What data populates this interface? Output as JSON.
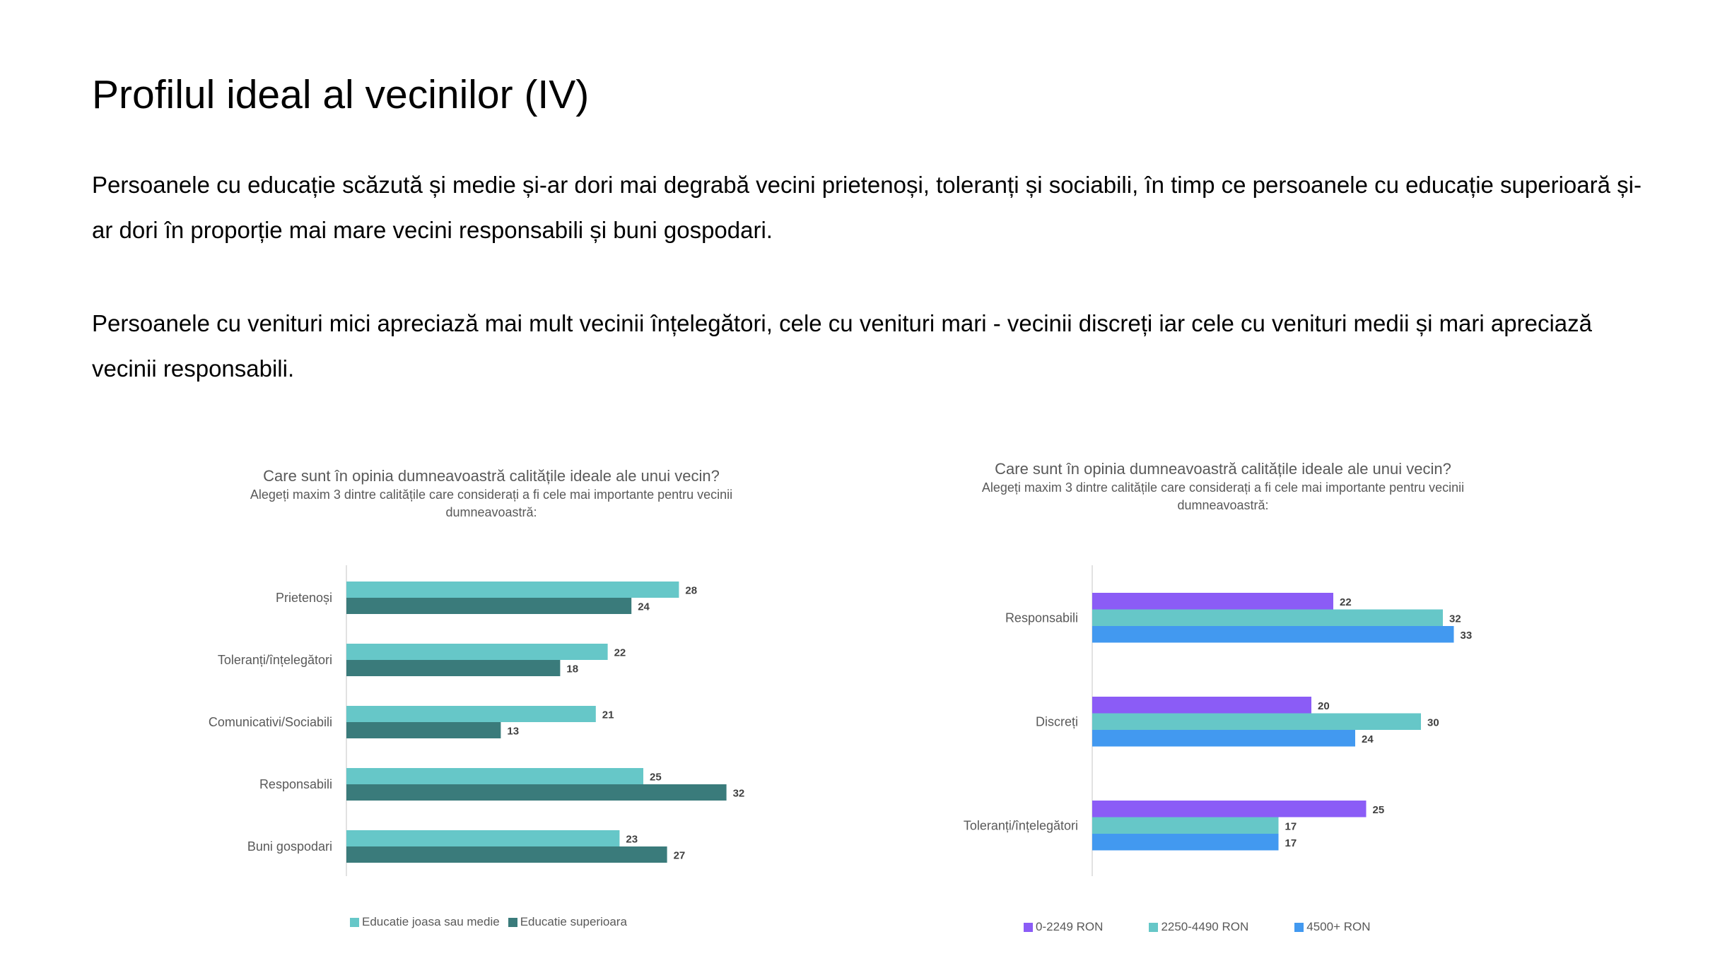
{
  "slide": {
    "title": "Profilul ideal al vecinilor (IV)",
    "paragraph1": "Persoanele cu educație scăzută și medie și-ar dori mai degrabă vecini prietenoși, toleranți și sociabili, în timp ce persoanele cu educație superioară și-ar dori în proporție mai mare  vecini responsabili și buni gospodari.",
    "paragraph2": "Persoanele cu venituri mici apreciază mai mult vecinii înțelegători, cele cu venituri mari - vecinii discreți iar cele cu venituri medii și mari apreciază vecinii responsabili."
  },
  "chart_data": [
    {
      "type": "bar",
      "orientation": "horizontal",
      "title": "Care sunt în opinia dumneavoastră calitățile ideale ale unui vecin?",
      "subtitle": "Alegeți maxim 3 dintre calitățile care considerați a fi cele mai importante pentru vecinii dumneavoastră:",
      "categories": [
        "Prietenoși",
        "Toleranți/înțelegători",
        "Comunicativi/Sociabili",
        "Responsabili",
        "Buni gospodari"
      ],
      "series": [
        {
          "name": "Educatie joasa sau medie",
          "color": "#66c7c8",
          "values": [
            28,
            22,
            21,
            25,
            23
          ]
        },
        {
          "name": "Educatie superioara",
          "color": "#3a7b7b",
          "values": [
            24,
            18,
            13,
            32,
            27
          ]
        }
      ],
      "xlim": [
        0,
        35
      ],
      "grid": false,
      "legend": "bottom"
    },
    {
      "type": "bar",
      "orientation": "horizontal",
      "title": "Care sunt în opinia dumneavoastră calitățile ideale ale unui vecin?",
      "subtitle": "Alegeți maxim 3 dintre calitățile care considerați a fi cele mai importante pentru vecinii dumneavoastră:",
      "categories": [
        "Responsabili",
        "Discreți",
        "Toleranți/înțelegători"
      ],
      "series": [
        {
          "name": "0-2249 RON",
          "color": "#8b5cf6",
          "values": [
            22,
            20,
            25
          ]
        },
        {
          "name": "2250-4490 RON",
          "color": "#66c7c8",
          "values": [
            32,
            30,
            17
          ]
        },
        {
          "name": "4500+ RON",
          "color": "#4299f0",
          "values": [
            33,
            24,
            17
          ]
        }
      ],
      "xlim": [
        0,
        35
      ],
      "grid": false,
      "legend": "bottom"
    }
  ]
}
